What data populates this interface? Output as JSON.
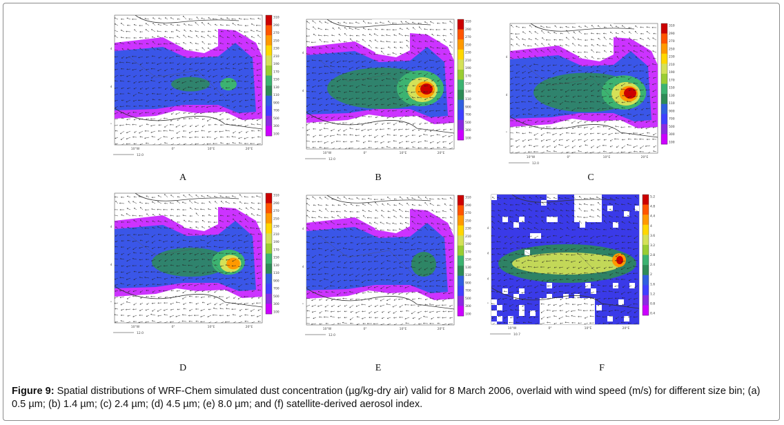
{
  "figure": {
    "label": "Figure 9:",
    "caption": " Spatial distributions of WRF-Chem simulated dust concentration (µg/kg-dry air) valid for 8 March 2006, overlaid with wind speed (m/s) for different size bin; (a) 0.5 µm; (b) 1.4 µm; (c) 2.4 µm; (d) 4.5 µm; (e) 8.0 µm; and (f) satellite-derived aerosol index."
  },
  "panels": [
    {
      "id": "A",
      "label": "A",
      "lat_ticks": [
        "20°N",
        "10°N",
        "0°"
      ],
      "lon_ticks": [
        "10°W",
        "0°",
        "10°E",
        "20°E"
      ],
      "vector_ref": "12.0",
      "max_level": "3100",
      "mode": "dust",
      "intensity": 0.35
    },
    {
      "id": "B",
      "label": "B",
      "lat_ticks": [
        "20°N",
        "10°N",
        "0°"
      ],
      "lon_ticks": [
        "10°W",
        "0°",
        "10°E",
        "20°E"
      ],
      "vector_ref": "12.0",
      "max_level": "3100",
      "mode": "dust",
      "intensity": 1.0
    },
    {
      "id": "C",
      "label": "C",
      "lat_ticks": [
        "20°N",
        "10°N",
        "0°"
      ],
      "lon_ticks": [
        "10°W",
        "0°",
        "10°E",
        "20°E"
      ],
      "vector_ref": "12.0",
      "max_level": "3100",
      "mode": "dust",
      "intensity": 0.95
    },
    {
      "id": "D",
      "label": "D",
      "lat_ticks": [
        "20°N",
        "10°N",
        "0°"
      ],
      "lon_ticks": [
        "10°W",
        "0°",
        "10°E",
        "20°E"
      ],
      "vector_ref": "12.0",
      "max_level": "3100",
      "mode": "dust",
      "intensity": 0.7
    },
    {
      "id": "E",
      "label": "E",
      "lat_ticks": [
        "20°N",
        "10°N",
        "0°"
      ],
      "lon_ticks": [
        "10°W",
        "0°",
        "10°E",
        "20°E"
      ],
      "vector_ref": "12.0",
      "max_level": "3100",
      "mode": "dust",
      "intensity": 0.3
    },
    {
      "id": "F",
      "label": "F",
      "lat_ticks": [
        "30°N",
        "20°N",
        "10°N",
        "0°"
      ],
      "lon_ticks": [
        "10°W",
        "0°",
        "10°E",
        "20°E"
      ],
      "vector_ref": "10.7",
      "max_level": "5.2",
      "mode": "aerosol",
      "intensity": 0.8
    }
  ],
  "dust_colorbar": [
    "3100",
    "2900",
    "2700",
    "2500",
    "2300",
    "2100",
    "1900",
    "1700",
    "1500",
    "1300",
    "1100",
    "900",
    "700",
    "500",
    "300",
    "100"
  ],
  "aerosol_colorbar": [
    "5.2",
    "4.8",
    "4.4",
    "4",
    "3.6",
    "3.2",
    "2.8",
    "2.4",
    "2",
    "1.6",
    "1.2",
    "0.8",
    "0.4"
  ],
  "colors": {
    "scale": [
      "#cc00ff",
      "#8a2be2",
      "#4040ff",
      "#3060e0",
      "#2e8b57",
      "#3cb371",
      "#9acd32",
      "#d4e157",
      "#ffd700",
      "#ff9900",
      "#ff5500",
      "#cc0000"
    ],
    "frame": "#8a8a8a"
  }
}
